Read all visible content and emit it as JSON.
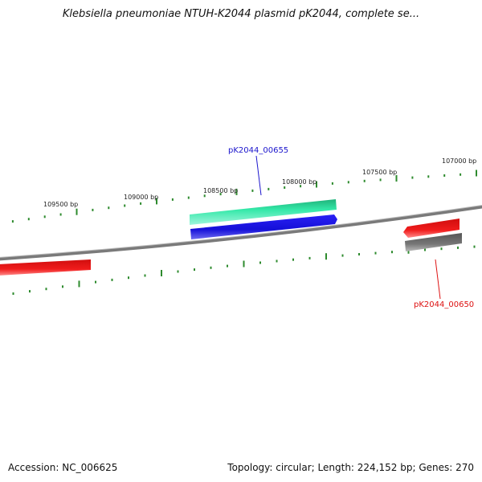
{
  "title": "Klebsiella pneumoniae NTUH-K2044 plasmid pK2044, complete se...",
  "footer": {
    "accession": "Accession: NC_006625",
    "topology": "Topology: circular; Length: 224,152 bp; Genes: 270"
  },
  "colors": {
    "backbone": "#7a7a7a",
    "tick": "#2e8b2e",
    "teal_feature": "#33e0a0",
    "blue_feature": "#1a14e0",
    "red_feature": "#e01a1a",
    "gray_feature": "#6e6e6e",
    "label_blue": "#1a14cc",
    "label_red": "#dd1111"
  },
  "scale": {
    "tick_labels": [
      "109500 bp",
      "109000 bp",
      "108500 bp",
      "108000 bp",
      "107500 bp",
      "107000 bp"
    ]
  },
  "features": {
    "gene_a": {
      "label": "pK2044_00655",
      "color_key": "label_blue"
    },
    "gene_b": {
      "label": "pK2044_00650",
      "color_key": "label_red"
    }
  }
}
